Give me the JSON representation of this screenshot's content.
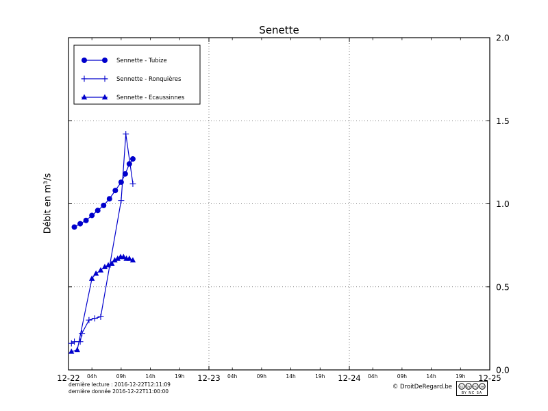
{
  "title": "Senette",
  "ylabel": "Débit en m³/s",
  "footer": {
    "line1": "dernière lecture : 2016-12-22T12:11:09",
    "line2": "dernière donnée  2016-12-22T11:00:00",
    "copyright": "© DroitDeRegard.be",
    "license": {
      "icons": [
        "cc",
        "by",
        "nc",
        "sa"
      ],
      "text": "BY NC SA"
    }
  },
  "colors": {
    "series": "#0000cc",
    "axis": "#000000",
    "grid": "#555555",
    "background": "#ffffff"
  },
  "chart_data": {
    "type": "line",
    "title": "Senette",
    "xlabel": "",
    "ylabel": "Débit en m³/s",
    "ylim": [
      0.0,
      2.0
    ],
    "yticks": [
      0.0,
      0.5,
      1.0,
      1.5,
      2.0
    ],
    "ytick_labels": [
      "0.0",
      "0.5",
      "1.0",
      "1.5",
      "2.0"
    ],
    "xlim_hours": [
      0,
      72
    ],
    "x_major_ticks": [
      {
        "hour": 0,
        "label": "12-22"
      },
      {
        "hour": 24,
        "label": "12-23"
      },
      {
        "hour": 48,
        "label": "12-24"
      },
      {
        "hour": 72,
        "label": "12-25"
      }
    ],
    "x_minor_ticks": [
      {
        "hour": 4,
        "label": "04h"
      },
      {
        "hour": 9,
        "label": "09h"
      },
      {
        "hour": 14,
        "label": "14h"
      },
      {
        "hour": 19,
        "label": "19h"
      },
      {
        "hour": 28,
        "label": "04h"
      },
      {
        "hour": 33,
        "label": "09h"
      },
      {
        "hour": 38,
        "label": "14h"
      },
      {
        "hour": 43,
        "label": "19h"
      },
      {
        "hour": 52,
        "label": "04h"
      },
      {
        "hour": 57,
        "label": "09h"
      },
      {
        "hour": 62,
        "label": "14h"
      },
      {
        "hour": 67,
        "label": "19h"
      }
    ],
    "grid": true,
    "legend_position": "upper-left",
    "series": [
      {
        "name": "Sennette - Tubize",
        "marker": "circle",
        "x": [
          1,
          2,
          3,
          4,
          5,
          6,
          7,
          8,
          9,
          9.7,
          10.4,
          11
        ],
        "y": [
          0.86,
          0.88,
          0.9,
          0.93,
          0.96,
          0.99,
          1.03,
          1.08,
          1.13,
          1.18,
          1.24,
          1.27
        ]
      },
      {
        "name": "Sennette - Ronquières",
        "marker": "plus",
        "x": [
          0.5,
          1,
          2,
          2.3,
          3.5,
          4.5,
          5.5,
          9,
          9.8,
          11
        ],
        "y": [
          0.16,
          0.17,
          0.17,
          0.22,
          0.3,
          0.31,
          0.32,
          1.02,
          1.42,
          1.12
        ]
      },
      {
        "name": "Sennette - Ecaussinnes",
        "marker": "triangle",
        "x": [
          0.5,
          1.5,
          4,
          4.7,
          5.5,
          6.2,
          6.8,
          7.4,
          7.9,
          8.4,
          8.9,
          9.4,
          9.9,
          10.4,
          11
        ],
        "y": [
          0.11,
          0.12,
          0.55,
          0.58,
          0.6,
          0.62,
          0.63,
          0.64,
          0.66,
          0.67,
          0.68,
          0.68,
          0.67,
          0.67,
          0.66
        ]
      }
    ]
  }
}
